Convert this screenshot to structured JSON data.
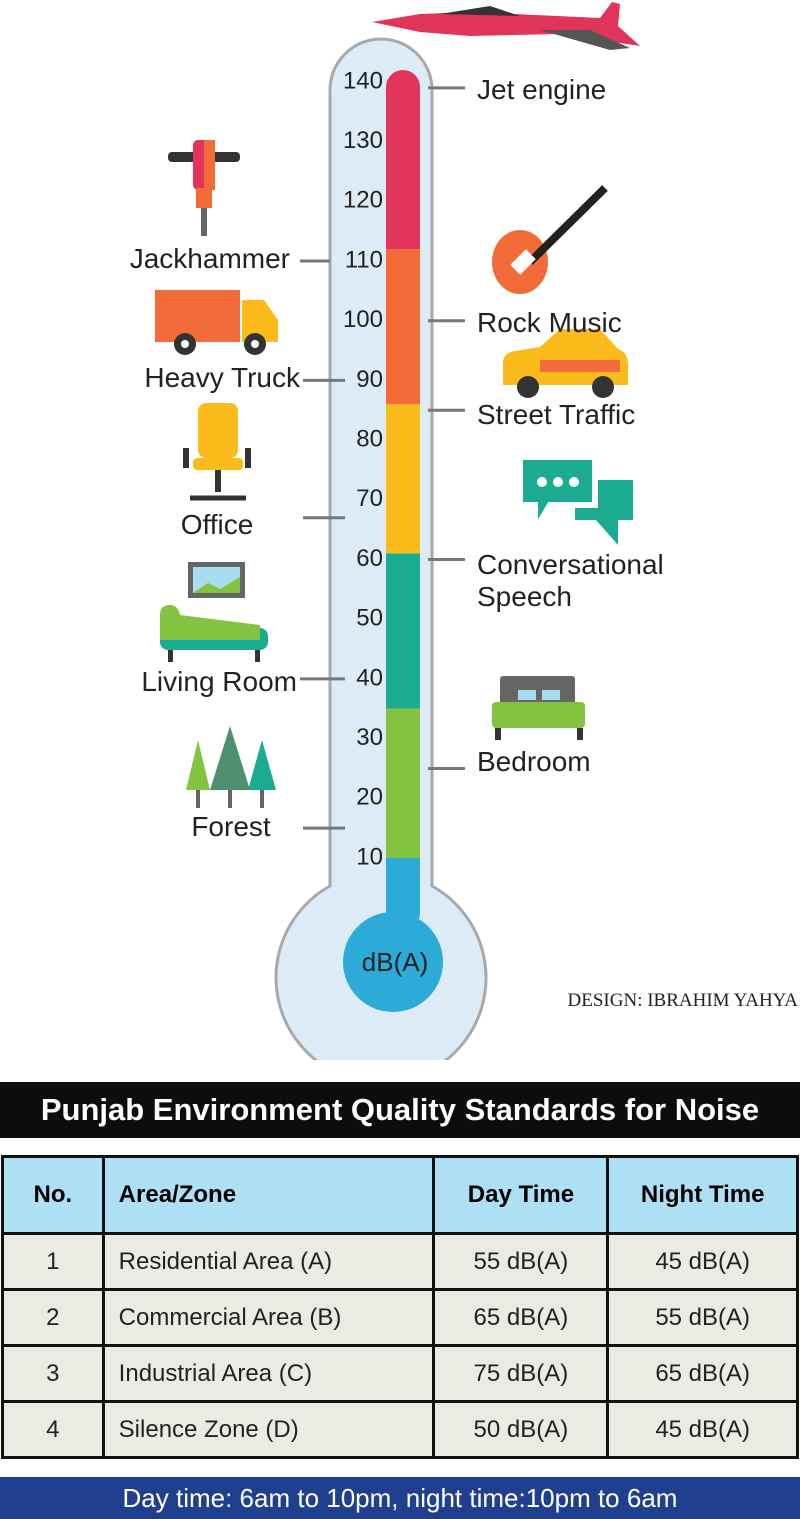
{
  "chart_data": {
    "type": "thermometer",
    "unit_label": "dB(A)",
    "ylim": [
      10,
      142
    ],
    "yticks": [
      10,
      20,
      30,
      40,
      50,
      60,
      70,
      80,
      90,
      100,
      110,
      120,
      130,
      140
    ],
    "bands": [
      {
        "from": 112,
        "to": 142,
        "color": "#e0345a"
      },
      {
        "from": 86,
        "to": 112,
        "color": "#f26b38"
      },
      {
        "from": 61,
        "to": 86,
        "color": "#fbbb1b"
      },
      {
        "from": 35,
        "to": 61,
        "color": "#1aab90"
      },
      {
        "from": 10,
        "to": 35,
        "color": "#84c341"
      }
    ],
    "markers": [
      {
        "label": "Jet engine",
        "value": 139
      },
      {
        "label": "Jackhammer",
        "value": 110
      },
      {
        "label": "Rock Music",
        "value": 100
      },
      {
        "label": "Heavy Truck",
        "value": 90
      },
      {
        "label": "Street Traffic",
        "value": 85
      },
      {
        "label": "Office",
        "value": 67
      },
      {
        "label": "Conversational Speech",
        "value": 60
      },
      {
        "label": "Living Room",
        "value": 40
      },
      {
        "label": "Bedroom",
        "value": 25
      },
      {
        "label": "Forest",
        "value": 15
      }
    ],
    "credit": "DESIGN:  IBRAHIM YAHYA"
  },
  "table": {
    "title": "Punjab Environment Quality Standards for Noise",
    "header": [
      "No.",
      "Area/Zone",
      "Day Time",
      "Night Time"
    ],
    "rows": [
      [
        "1",
        "Residential Area (A)",
        "55 dB(A)",
        "45 dB(A)"
      ],
      [
        "2",
        "Commercial Area (B)",
        "65 dB(A)",
        "55 dB(A)"
      ],
      [
        "3",
        "Industrial Area (C)",
        "75 dB(A)",
        "65 dB(A)"
      ],
      [
        "4",
        "Silence Zone (D)",
        "50 dB(A)",
        "45 dB(A)"
      ]
    ],
    "footnote": "Day time: 6am to 10pm, night time:10pm to 6am"
  }
}
